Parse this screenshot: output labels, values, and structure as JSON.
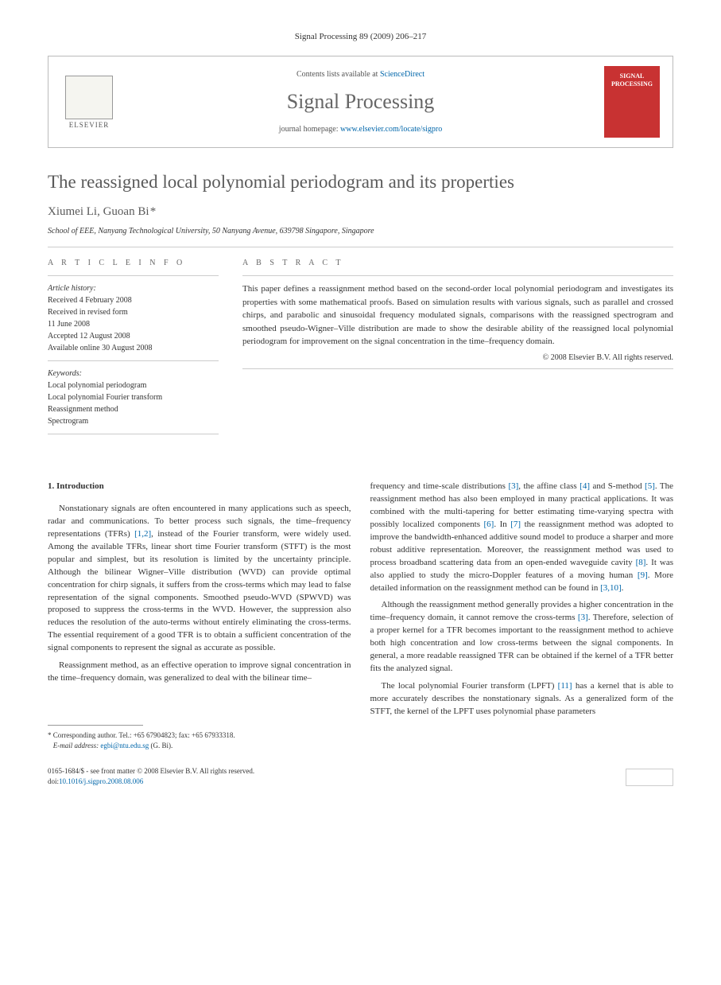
{
  "journal_ref": "Signal Processing 89 (2009) 206–217",
  "header": {
    "contents_prefix": "Contents lists available at ",
    "sciencedirect": "ScienceDirect",
    "journal_name": "Signal Processing",
    "homepage_prefix": "journal homepage: ",
    "homepage_url": "www.elsevier.com/locate/sigpro",
    "elsevier_label": "ELSEVIER",
    "cover_line1": "SIGNAL",
    "cover_line2": "PROCESSING"
  },
  "title": "The reassigned local polynomial periodogram and its properties",
  "authors": "Xiumei Li, Guoan Bi",
  "corr_marker": "*",
  "affiliation": "School of EEE, Nanyang Technological University, 50 Nanyang Avenue, 639798 Singapore, Singapore",
  "info": {
    "label": "A R T I C L E   I N F O",
    "history_heading": "Article history:",
    "received": "Received 4 February 2008",
    "revised1": "Received in revised form",
    "revised2": "11 June 2008",
    "accepted": "Accepted 12 August 2008",
    "online": "Available online 30 August 2008",
    "keywords_heading": "Keywords:",
    "kw1": "Local polynomial periodogram",
    "kw2": "Local polynomial Fourier transform",
    "kw3": "Reassignment method",
    "kw4": "Spectrogram"
  },
  "abstract": {
    "label": "A B S T R A C T",
    "text": "This paper defines a reassignment method based on the second-order local polynomial periodogram and investigates its properties with some mathematical proofs. Based on simulation results with various signals, such as parallel and crossed chirps, and parabolic and sinusoidal frequency modulated signals, comparisons with the reassigned spectrogram and smoothed pseudo-Wigner–Ville distribution are made to show the desirable ability of the reassigned local polynomial periodogram for improvement on the signal concentration in the time–frequency domain.",
    "copyright": "© 2008 Elsevier B.V. All rights reserved."
  },
  "body": {
    "heading": "1.  Introduction",
    "p1a": "Nonstationary signals are often encountered in many applications such as speech, radar and communications. To better process such signals, the time–frequency representations (TFRs) ",
    "r12": "[1,2]",
    "p1b": ", instead of the Fourier transform, were widely used. Among the available TFRs, linear short time Fourier transform (STFT) is the most popular and simplest, but its resolution is limited by the uncertainty principle. Although the bilinear Wigner–Ville distribution (WVD) can provide optimal concentration for chirp signals, it suffers from the cross-terms which may lead to false representation of the signal components. Smoothed pseudo-WVD (SPWVD) was proposed to suppress the cross-terms in the WVD. However, the suppression also reduces the resolution of the auto-terms without entirely eliminating the cross-terms. The essential requirement of a good TFR is to obtain a sufficient concentration of the signal components to represent the signal as accurate as possible.",
    "p2": "Reassignment method, as an effective operation to improve signal concentration in the time–frequency domain, was generalized to deal with the bilinear time–",
    "p3a": "frequency and time-scale distributions ",
    "r3": "[3]",
    "p3b": ", the affine class ",
    "r4": "[4]",
    "p3c": " and S-method ",
    "r5": "[5]",
    "p3d": ". The reassignment method has also been employed in many practical applications. It was combined with the multi-tapering for better estimating time-varying spectra with possibly localized components ",
    "r6": "[6]",
    "p3e": ". In ",
    "r7": "[7]",
    "p3f": " the reassignment method was adopted to improve the bandwidth-enhanced additive sound model to produce a sharper and more robust additive representation. Moreover, the reassignment method was used to process broadband scattering data from an open-ended waveguide cavity ",
    "r8": "[8]",
    "p3g": ". It was also applied to study the micro-Doppler features of a moving human ",
    "r9": "[9]",
    "p3h": ". More detailed information on the reassignment method can be found in ",
    "r310": "[3,10]",
    "p3i": ".",
    "p4a": "Although the reassignment method generally provides a higher concentration in the time–frequency domain, it cannot remove the cross-terms ",
    "r3b": "[3]",
    "p4b": ". Therefore, selection of a proper kernel for a TFR becomes important to the reassignment method to achieve both high concentration and low cross-terms between the signal components. In general, a more readable reassigned TFR can be obtained if the kernel of a TFR better fits the analyzed signal.",
    "p5a": "The local polynomial Fourier transform (LPFT) ",
    "r11": "[11]",
    "p5b": " has a kernel that is able to more accurately describes the nonstationary signals. As a generalized form of the STFT, the kernel of the LPFT uses polynomial phase parameters"
  },
  "footnote": {
    "corr": "Corresponding author. Tel.: +65 67904823; fax: +65 67933318.",
    "email_label": "E-mail address: ",
    "email": "egbi@ntu.edu.sg",
    "email_suffix": " (G. Bi)."
  },
  "footer": {
    "line1": "0165-1684/$ - see front matter © 2008 Elsevier B.V. All rights reserved.",
    "doi_prefix": "doi:",
    "doi": "10.1016/j.sigpro.2008.08.006"
  }
}
